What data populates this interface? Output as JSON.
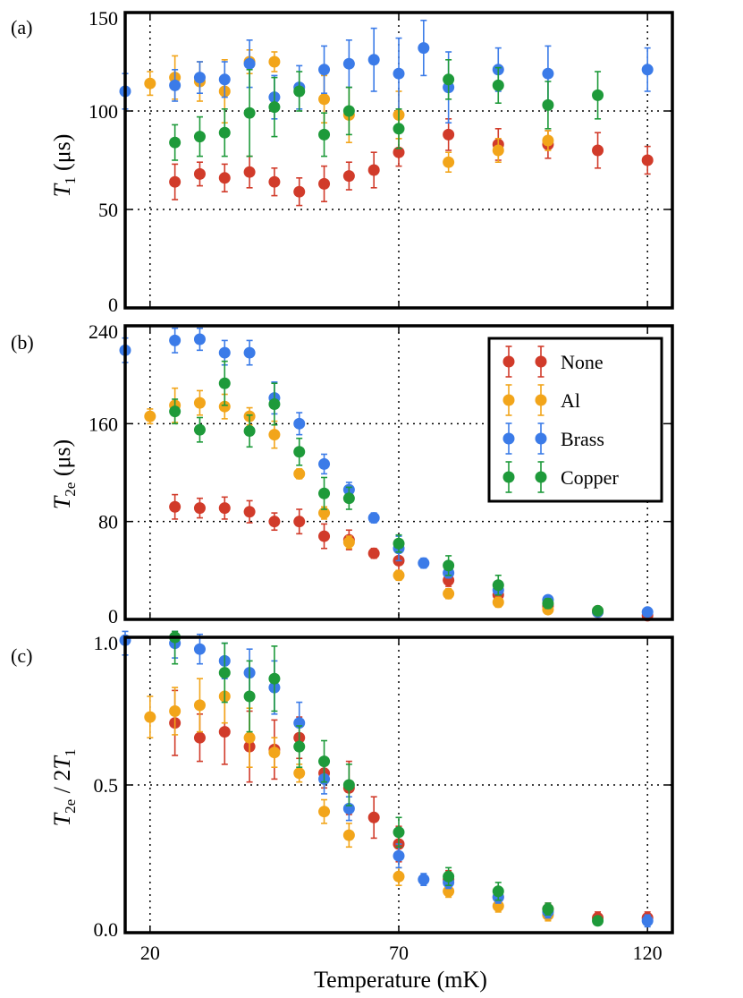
{
  "colors": {
    "None": "#d13b2a",
    "Al": "#f2a51a",
    "Brass": "#3b7be8",
    "Copper": "#1e9a3a"
  },
  "xaxis": {
    "label": "Temperature (mK)",
    "range": [
      15,
      125
    ],
    "ticks": [
      20,
      70,
      120
    ]
  },
  "legend": {
    "position": "top-right",
    "entries": [
      "None",
      "Al",
      "Brass",
      "Copper"
    ]
  },
  "chart_data": [
    {
      "type": "scatter",
      "panel": "(a)",
      "ylabel": "T1 (μs)",
      "ylabel_main": "T",
      "ylabel_sub": "1",
      "ylabel_unit": " (μs)",
      "ylim": [
        0,
        150
      ],
      "yticks": [
        0,
        50,
        100,
        150
      ],
      "grid_y": [
        50,
        100
      ],
      "grid_x": [
        20,
        70,
        120
      ],
      "series": [
        {
          "name": "None",
          "points": [
            [
              25,
              64,
              9
            ],
            [
              30,
              68,
              6
            ],
            [
              35,
              66,
              7
            ],
            [
              40,
              69,
              8
            ],
            [
              45,
              64,
              7
            ],
            [
              50,
              59,
              7
            ],
            [
              55,
              63,
              9
            ],
            [
              60,
              67,
              7
            ],
            [
              65,
              70,
              9
            ],
            [
              70,
              79,
              7
            ],
            [
              80,
              88,
              8
            ],
            [
              90,
              83,
              8
            ],
            [
              100,
              83,
              7
            ],
            [
              110,
              80,
              9
            ],
            [
              120,
              75,
              7
            ]
          ]
        },
        {
          "name": "Al",
          "points": [
            [
              20,
              114,
              6
            ],
            [
              25,
              117,
              11
            ],
            [
              30,
              115,
              10
            ],
            [
              35,
              110,
              16
            ],
            [
              40,
              125,
              6
            ],
            [
              45,
              125,
              5
            ],
            [
              55,
              106,
              12
            ],
            [
              60,
              98,
              14
            ],
            [
              70,
              98,
              12
            ],
            [
              80,
              74,
              5
            ],
            [
              90,
              80,
              6
            ],
            [
              100,
              85,
              5
            ]
          ]
        },
        {
          "name": "Brass",
          "points": [
            [
              15,
              110,
              9
            ],
            [
              25,
              113,
              8
            ],
            [
              30,
              117,
              8
            ],
            [
              35,
              116,
              9
            ],
            [
              40,
              124,
              12
            ],
            [
              45,
              107,
              11
            ],
            [
              50,
              112,
              11
            ],
            [
              55,
              121,
              12
            ],
            [
              60,
              124,
              12
            ],
            [
              65,
              126,
              16
            ],
            [
              70,
              119,
              18
            ],
            [
              75,
              132,
              14
            ],
            [
              80,
              112,
              18
            ],
            [
              90,
              121,
              11
            ],
            [
              100,
              119,
              14
            ],
            [
              120,
              121,
              11
            ]
          ]
        },
        {
          "name": "Copper",
          "points": [
            [
              25,
              84,
              9
            ],
            [
              30,
              87,
              10
            ],
            [
              35,
              89,
              12
            ],
            [
              40,
              99,
              22
            ],
            [
              45,
              102,
              15
            ],
            [
              50,
              110,
              10
            ],
            [
              55,
              88,
              11
            ],
            [
              60,
              100,
              12
            ],
            [
              70,
              91,
              10
            ],
            [
              80,
              116,
              10
            ],
            [
              90,
              113,
              9
            ],
            [
              100,
              103,
              12
            ],
            [
              110,
              108,
              12
            ]
          ]
        }
      ]
    },
    {
      "type": "scatter",
      "panel": "(b)",
      "ylabel": "T2e (μs)",
      "ylabel_main": "T",
      "ylabel_sub": "2e",
      "ylabel_unit": " (μs)",
      "ylim": [
        0,
        240
      ],
      "yticks": [
        0,
        80,
        160,
        240
      ],
      "grid_y": [
        80,
        160
      ],
      "grid_x": [
        20,
        70,
        120
      ],
      "series": [
        {
          "name": "None",
          "points": [
            [
              25,
              92,
              10
            ],
            [
              30,
              91,
              8
            ],
            [
              35,
              91,
              9
            ],
            [
              40,
              88,
              9
            ],
            [
              45,
              80,
              7
            ],
            [
              50,
              80,
              10
            ],
            [
              55,
              68,
              10
            ],
            [
              60,
              65,
              8
            ],
            [
              65,
              54,
              4
            ],
            [
              70,
              48,
              8
            ],
            [
              80,
              32,
              5
            ],
            [
              90,
              20,
              5
            ],
            [
              100,
              11,
              4
            ],
            [
              110,
              7,
              3
            ],
            [
              120,
              3,
              3
            ]
          ]
        },
        {
          "name": "Al",
          "points": [
            [
              20,
              166,
              6
            ],
            [
              25,
              175,
              14
            ],
            [
              30,
              177,
              10
            ],
            [
              35,
              174,
              10
            ],
            [
              40,
              166,
              7
            ],
            [
              45,
              151,
              11
            ],
            [
              50,
              119,
              4
            ],
            [
              55,
              87,
              5
            ],
            [
              60,
              63,
              5
            ],
            [
              70,
              36,
              4
            ],
            [
              80,
              21,
              4
            ],
            [
              90,
              14,
              4
            ],
            [
              100,
              8,
              3
            ],
            [
              110,
              6,
              2
            ]
          ]
        },
        {
          "name": "Brass",
          "points": [
            [
              15,
              220,
              10
            ],
            [
              25,
              228,
              10
            ],
            [
              30,
              229,
              9
            ],
            [
              35,
              218,
              10
            ],
            [
              40,
              218,
              10
            ],
            [
              45,
              181,
              13
            ],
            [
              50,
              160,
              9
            ],
            [
              55,
              127,
              8
            ],
            [
              60,
              106,
              6
            ],
            [
              65,
              83,
              4
            ],
            [
              70,
              58,
              10
            ],
            [
              75,
              46,
              4
            ],
            [
              80,
              38,
              4
            ],
            [
              90,
              24,
              4
            ],
            [
              100,
              16,
              3
            ],
            [
              110,
              6,
              2
            ],
            [
              120,
              6,
              3
            ]
          ]
        },
        {
          "name": "Copper",
          "points": [
            [
              25,
              170,
              10
            ],
            [
              35,
              193,
              18
            ],
            [
              30,
              155,
              10
            ],
            [
              40,
              154,
              13
            ],
            [
              45,
              176,
              17
            ],
            [
              50,
              137,
              11
            ],
            [
              55,
              103,
              13
            ],
            [
              60,
              99,
              9
            ],
            [
              70,
              62,
              7
            ],
            [
              80,
              44,
              8
            ],
            [
              90,
              28,
              8
            ],
            [
              100,
              13,
              4
            ],
            [
              110,
              7,
              3
            ]
          ]
        }
      ]
    },
    {
      "type": "scatter",
      "panel": "(c)",
      "ylabel": "T2e / 2T1",
      "ylabel_parts": [
        "T",
        "2e",
        " / 2",
        "T",
        "1"
      ],
      "ylim": [
        0,
        1.0
      ],
      "yticks": [
        0,
        0.5,
        1.0
      ],
      "ytick_labels": [
        "0.0",
        "0.5",
        "1.0"
      ],
      "grid_y": [
        0.5,
        1.0
      ],
      "grid_x": [
        20,
        70,
        120
      ],
      "series": [
        {
          "name": "None",
          "points": [
            [
              25,
              0.71,
              0.11
            ],
            [
              30,
              0.66,
              0.08
            ],
            [
              35,
              0.68,
              0.11
            ],
            [
              40,
              0.63,
              0.12
            ],
            [
              45,
              0.62,
              0.1
            ],
            [
              50,
              0.66,
              0.07
            ],
            [
              55,
              0.54,
              0.05
            ],
            [
              60,
              0.49,
              0.09
            ],
            [
              65,
              0.39,
              0.07
            ],
            [
              70,
              0.3,
              0.06
            ],
            [
              80,
              0.18,
              0.03
            ],
            [
              90,
              0.12,
              0.03
            ],
            [
              100,
              0.08,
              0.02
            ],
            [
              110,
              0.05,
              0.02
            ],
            [
              120,
              0.05,
              0.02
            ]
          ]
        },
        {
          "name": "Al",
          "points": [
            [
              20,
              0.73,
              0.07
            ],
            [
              25,
              0.75,
              0.08
            ],
            [
              30,
              0.77,
              0.09
            ],
            [
              35,
              0.8,
              0.09
            ],
            [
              40,
              0.66,
              0.1
            ],
            [
              45,
              0.61,
              0.05
            ],
            [
              50,
              0.54,
              0.03
            ],
            [
              55,
              0.41,
              0.04
            ],
            [
              60,
              0.33,
              0.04
            ],
            [
              70,
              0.19,
              0.03
            ],
            [
              80,
              0.14,
              0.02
            ],
            [
              90,
              0.09,
              0.02
            ],
            [
              100,
              0.06,
              0.02
            ]
          ]
        },
        {
          "name": "Brass",
          "points": [
            [
              15,
              0.99,
              0.05
            ],
            [
              25,
              0.98,
              0.05
            ],
            [
              30,
              0.96,
              0.05
            ],
            [
              35,
              0.92,
              0.06
            ],
            [
              40,
              0.88,
              0.08
            ],
            [
              45,
              0.83,
              0.09
            ],
            [
              50,
              0.71,
              0.07
            ],
            [
              55,
              0.52,
              0.05
            ],
            [
              60,
              0.42,
              0.04
            ],
            [
              70,
              0.26,
              0.04
            ],
            [
              75,
              0.18,
              0.02
            ],
            [
              80,
              0.17,
              0.02
            ],
            [
              90,
              0.12,
              0.02
            ],
            [
              100,
              0.07,
              0.02
            ],
            [
              120,
              0.04,
              0.02
            ]
          ]
        },
        {
          "name": "Copper",
          "points": [
            [
              25,
              1.0,
              0.09
            ],
            [
              35,
              0.88,
              0.1
            ],
            [
              40,
              0.8,
              0.12
            ],
            [
              45,
              0.86,
              0.11
            ],
            [
              50,
              0.63,
              0.07
            ],
            [
              55,
              0.58,
              0.07
            ],
            [
              60,
              0.5,
              0.07
            ],
            [
              70,
              0.34,
              0.05
            ],
            [
              80,
              0.19,
              0.03
            ],
            [
              90,
              0.14,
              0.03
            ],
            [
              100,
              0.08,
              0.02
            ],
            [
              110,
              0.04,
              0.01
            ]
          ]
        }
      ]
    }
  ]
}
